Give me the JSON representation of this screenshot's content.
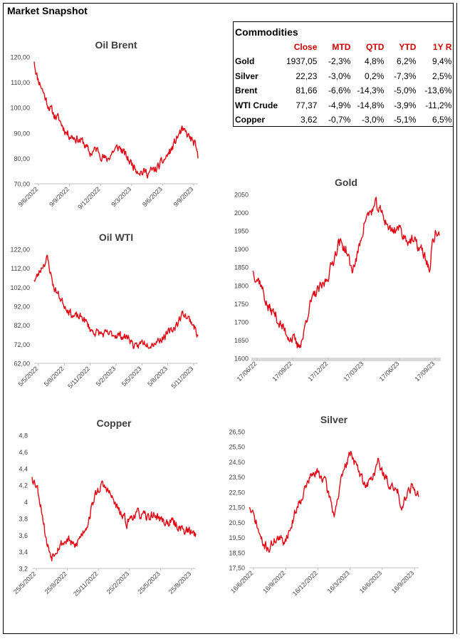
{
  "page": {
    "title": "Market Snapshot"
  },
  "table": {
    "title": "Commodities",
    "headers": [
      "Close",
      "MTD",
      "QTD",
      "YTD",
      "1Y R"
    ],
    "rows": [
      {
        "name": "Gold",
        "values": [
          "1937,05",
          "-2,3%",
          "4,8%",
          "6,2%",
          "9,4%"
        ]
      },
      {
        "name": "Silver",
        "values": [
          "22,23",
          "-3,0%",
          "0,2%",
          "-7,3%",
          "2,5%"
        ]
      },
      {
        "name": "Brent",
        "values": [
          "81,66",
          "-6,6%",
          "-14,3%",
          "-5,0%",
          "-13,6%"
        ]
      },
      {
        "name": "WTI Crude",
        "values": [
          "77,37",
          "-4,9%",
          "-14,8%",
          "-3,9%",
          "-11,2%"
        ]
      },
      {
        "name": "Copper",
        "values": [
          "3,62",
          "-0,7%",
          "-3,0%",
          "-5,1%",
          "6,5%"
        ]
      }
    ]
  },
  "colors": {
    "line": "#e30613",
    "header": "#d40000",
    "axis": "#404040",
    "band": "#d9d9d9"
  },
  "chart_data": [
    {
      "id": "brent",
      "type": "line",
      "title": "Oil Brent",
      "ylim": [
        70,
        125
      ],
      "yticks": [
        "70,00",
        "80,00",
        "90,00",
        "100,00",
        "110,00",
        "120,00"
      ],
      "xticks": [
        "9/6/2022",
        "9/9/2022",
        "9/12/2022",
        "9/3/2023",
        "9/6/2023",
        "9/9/2023"
      ],
      "anchors": [
        [
          0,
          123
        ],
        [
          0.02,
          116
        ],
        [
          0.04,
          113
        ],
        [
          0.08,
          105
        ],
        [
          0.12,
          100
        ],
        [
          0.15,
          98
        ],
        [
          0.2,
          92
        ],
        [
          0.25,
          90
        ],
        [
          0.3,
          88
        ],
        [
          0.34,
          83
        ],
        [
          0.38,
          85
        ],
        [
          0.42,
          82
        ],
        [
          0.44,
          80
        ],
        [
          0.48,
          84
        ],
        [
          0.52,
          86
        ],
        [
          0.55,
          83
        ],
        [
          0.58,
          80
        ],
        [
          0.62,
          77
        ],
        [
          0.66,
          75
        ],
        [
          0.7,
          75
        ],
        [
          0.74,
          76
        ],
        [
          0.78,
          79
        ],
        [
          0.82,
          83
        ],
        [
          0.84,
          85
        ],
        [
          0.86,
          88
        ],
        [
          0.88,
          91
        ],
        [
          0.9,
          93
        ],
        [
          0.92,
          92
        ],
        [
          0.95,
          90
        ],
        [
          0.98,
          87
        ],
        [
          1,
          81
        ]
      ],
      "seed": 11,
      "n": 300
    },
    {
      "id": "wti",
      "type": "line",
      "title": "Oil WTI",
      "ylim": [
        62,
        125
      ],
      "yticks": [
        "62,00",
        "72,00",
        "82,00",
        "92,00",
        "102,00",
        "112,00",
        "122,00"
      ],
      "xticks": [
        "5/5/2022",
        "5/8/2022",
        "5/11/2022",
        "5/2/2023",
        "5/5/2023",
        "5/8/2023",
        "5/11/2023"
      ],
      "anchors": [
        [
          0,
          108
        ],
        [
          0.02,
          110
        ],
        [
          0.05,
          116
        ],
        [
          0.08,
          120
        ],
        [
          0.12,
          104
        ],
        [
          0.18,
          95
        ],
        [
          0.24,
          88
        ],
        [
          0.3,
          87
        ],
        [
          0.35,
          80
        ],
        [
          0.42,
          78
        ],
        [
          0.5,
          78
        ],
        [
          0.58,
          76
        ],
        [
          0.62,
          70
        ],
        [
          0.66,
          74
        ],
        [
          0.72,
          73
        ],
        [
          0.78,
          76
        ],
        [
          0.84,
          80
        ],
        [
          0.88,
          85
        ],
        [
          0.91,
          90
        ],
        [
          0.94,
          87
        ],
        [
          0.97,
          84
        ],
        [
          1,
          77
        ]
      ],
      "seed": 23,
      "n": 300
    },
    {
      "id": "gold",
      "type": "line",
      "title": "Gold",
      "ylim": [
        1600,
        2050
      ],
      "yticks": [
        "1600",
        "1650",
        "1700",
        "1750",
        "1800",
        "1850",
        "1900",
        "1950",
        "2000",
        "2050"
      ],
      "xticks": [
        "17/06/22",
        "17/09/22",
        "17/12/22",
        "17/03/23",
        "17/06/23",
        "17/09/23"
      ],
      "anchors": [
        [
          0,
          1840
        ],
        [
          0.04,
          1810
        ],
        [
          0.08,
          1740
        ],
        [
          0.12,
          1720
        ],
        [
          0.15,
          1690
        ],
        [
          0.18,
          1670
        ],
        [
          0.2,
          1660
        ],
        [
          0.22,
          1650
        ],
        [
          0.24,
          1630
        ],
        [
          0.27,
          1660
        ],
        [
          0.3,
          1740
        ],
        [
          0.34,
          1780
        ],
        [
          0.38,
          1800
        ],
        [
          0.42,
          1850
        ],
        [
          0.46,
          1920
        ],
        [
          0.5,
          1900
        ],
        [
          0.53,
          1840
        ],
        [
          0.56,
          1880
        ],
        [
          0.6,
          1980
        ],
        [
          0.63,
          2000
        ],
        [
          0.66,
          2020
        ],
        [
          0.7,
          1990
        ],
        [
          0.74,
          1950
        ],
        [
          0.78,
          1960
        ],
        [
          0.82,
          1930
        ],
        [
          0.86,
          1920
        ],
        [
          0.9,
          1900
        ],
        [
          0.93,
          1870
        ],
        [
          0.95,
          1840
        ],
        [
          0.96,
          1900
        ],
        [
          0.98,
          1950
        ],
        [
          1,
          1937
        ]
      ],
      "seed": 37,
      "n": 320
    },
    {
      "id": "copper",
      "type": "line",
      "title": "Copper",
      "ylim": [
        3.2,
        4.8
      ],
      "yticks": [
        "3,2",
        "3,4",
        "3,6",
        "3,8",
        "4",
        "4,2",
        "4,4",
        "4,6",
        "4,8"
      ],
      "xticks": [
        "25/5/2022",
        "25/8/2022",
        "25/11/2022",
        "25/2/2023",
        "25/5/2023",
        "25/8/2023"
      ],
      "anchors": [
        [
          0,
          4.3
        ],
        [
          0.03,
          4.2
        ],
        [
          0.06,
          3.9
        ],
        [
          0.09,
          3.5
        ],
        [
          0.12,
          3.35
        ],
        [
          0.15,
          3.45
        ],
        [
          0.18,
          3.5
        ],
        [
          0.22,
          3.55
        ],
        [
          0.26,
          3.45
        ],
        [
          0.3,
          3.6
        ],
        [
          0.34,
          3.75
        ],
        [
          0.38,
          4.05
        ],
        [
          0.42,
          4.2
        ],
        [
          0.46,
          4.15
        ],
        [
          0.5,
          4.0
        ],
        [
          0.54,
          3.85
        ],
        [
          0.58,
          3.75
        ],
        [
          0.62,
          3.85
        ],
        [
          0.66,
          3.85
        ],
        [
          0.7,
          3.8
        ],
        [
          0.74,
          3.85
        ],
        [
          0.78,
          3.8
        ],
        [
          0.82,
          3.75
        ],
        [
          0.86,
          3.75
        ],
        [
          0.9,
          3.7
        ],
        [
          0.94,
          3.65
        ],
        [
          1,
          3.62
        ]
      ],
      "seed": 53,
      "n": 300
    },
    {
      "id": "silver",
      "type": "line",
      "title": "Silver",
      "ylim": [
        17.5,
        26.5
      ],
      "yticks": [
        "17,50",
        "18,50",
        "19,50",
        "20,50",
        "21,50",
        "22,50",
        "23,50",
        "24,50",
        "25,50",
        "26,50"
      ],
      "xticks": [
        "16/6/2022",
        "16/9/2022",
        "16/12/2022",
        "16/3/2023",
        "16/6/2023",
        "16/9/2023"
      ],
      "anchors": [
        [
          0,
          21.5
        ],
        [
          0.04,
          20.5
        ],
        [
          0.08,
          19
        ],
        [
          0.12,
          18.8
        ],
        [
          0.16,
          19.5
        ],
        [
          0.2,
          19.2
        ],
        [
          0.24,
          20
        ],
        [
          0.28,
          21.5
        ],
        [
          0.32,
          22.5
        ],
        [
          0.36,
          23.5
        ],
        [
          0.4,
          23.8
        ],
        [
          0.44,
          23.4
        ],
        [
          0.48,
          22
        ],
        [
          0.5,
          21
        ],
        [
          0.53,
          22.5
        ],
        [
          0.56,
          24
        ],
        [
          0.6,
          25.2
        ],
        [
          0.64,
          24
        ],
        [
          0.68,
          23
        ],
        [
          0.72,
          23.3
        ],
        [
          0.76,
          24.5
        ],
        [
          0.8,
          23.5
        ],
        [
          0.84,
          22.8
        ],
        [
          0.88,
          22.5
        ],
        [
          0.9,
          21.5
        ],
        [
          0.93,
          22.5
        ],
        [
          0.96,
          23
        ],
        [
          1,
          22.2
        ]
      ],
      "seed": 71,
      "n": 300
    }
  ]
}
